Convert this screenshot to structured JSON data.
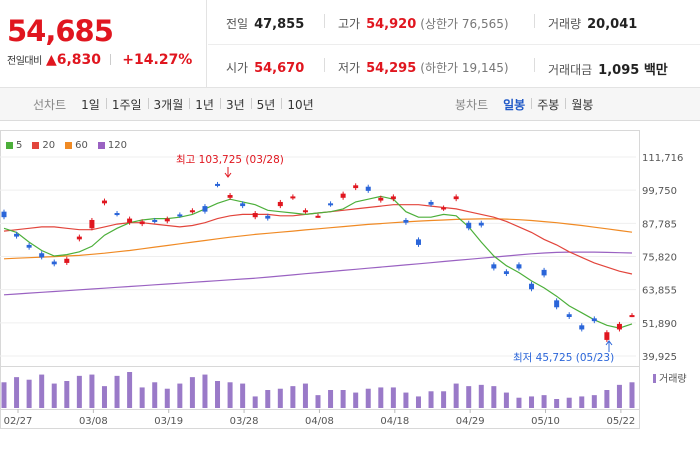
{
  "quote": {
    "price": "54,685",
    "change_label": "전일대비",
    "change_value": "▲6,830",
    "change_pct": "+14.27%",
    "metrics": [
      {
        "key": "전일",
        "value": "47,855",
        "color": "default"
      },
      {
        "key": "고가",
        "value": "54,920",
        "color": "red",
        "sub": "(상한가 76,565)"
      },
      {
        "key": "거래량",
        "value": "20,041",
        "color": "default"
      },
      {
        "key": "시가",
        "value": "54,670",
        "color": "red"
      },
      {
        "key": "저가",
        "value": "54,295",
        "color": "red",
        "sub": "(하한가 19,145)"
      },
      {
        "key": "거래대금",
        "value": "1,095 백만",
        "color": "default"
      }
    ]
  },
  "line_chart_tabs": {
    "label": "선차트",
    "items": [
      "1일",
      "1주일",
      "3개월",
      "1년",
      "3년",
      "5년",
      "10년"
    ]
  },
  "candle_chart_tabs": {
    "label": "봉차트",
    "items": [
      "일봉",
      "주봉",
      "월봉"
    ],
    "active": "일봉"
  },
  "chart_data": {
    "type": "candlestick",
    "legend": [
      {
        "label": "5",
        "color": "#4caf3a"
      },
      {
        "label": "20",
        "color": "#e2453c"
      },
      {
        "label": "60",
        "color": "#f08a24"
      },
      {
        "label": "120",
        "color": "#9a62c2"
      }
    ],
    "price_ticks": [
      "111,716",
      "99,750",
      "87,785",
      "75,820",
      "63,855",
      "51,890",
      "39,925"
    ],
    "ylim": [
      39925,
      111716
    ],
    "x_labels": [
      "02/27",
      "03/08",
      "03/19",
      "03/28",
      "04/08",
      "04/18",
      "04/29",
      "05/10",
      "05/22"
    ],
    "annotations": {
      "high": "최고 103,725 (03/28)",
      "low": "최저 45,725 (05/23)"
    },
    "volume_label": "거래량",
    "candles": [
      {
        "o": 92000,
        "c": 90000
      },
      {
        "o": 84000,
        "c": 83000
      },
      {
        "o": 80000,
        "c": 79000
      },
      {
        "o": 77000,
        "c": 75500
      },
      {
        "o": 74000,
        "c": 73000
      },
      {
        "o": 73500,
        "c": 75000
      },
      {
        "o": 82000,
        "c": 83000
      },
      {
        "o": 86000,
        "c": 89000
      },
      {
        "o": 95000,
        "c": 96000
      },
      {
        "o": 91500,
        "c": 91000
      },
      {
        "o": 88000,
        "c": 89500
      },
      {
        "o": 87500,
        "c": 88500
      },
      {
        "o": 89000,
        "c": 88500
      },
      {
        "o": 88500,
        "c": 89500
      },
      {
        "o": 91000,
        "c": 90500
      },
      {
        "o": 92000,
        "c": 92500
      },
      {
        "o": 94000,
        "c": 92000
      },
      {
        "o": 102000,
        "c": 101500
      },
      {
        "o": 97000,
        "c": 98000
      },
      {
        "o": 95000,
        "c": 94000
      },
      {
        "o": 90000,
        "c": 91500
      },
      {
        "o": 90500,
        "c": 89500
      },
      {
        "o": 94000,
        "c": 95500
      },
      {
        "o": 97000,
        "c": 97500
      },
      {
        "o": 92000,
        "c": 92500
      },
      {
        "o": 90500,
        "c": 90500
      },
      {
        "o": 95000,
        "c": 94500
      },
      {
        "o": 97000,
        "c": 98500
      },
      {
        "o": 100500,
        "c": 101500
      },
      {
        "o": 101000,
        "c": 99500
      },
      {
        "o": 96000,
        "c": 97000
      },
      {
        "o": 96500,
        "c": 97500
      },
      {
        "o": 89000,
        "c": 88000
      },
      {
        "o": 82000,
        "c": 80000
      },
      {
        "o": 95500,
        "c": 94500
      },
      {
        "o": 93000,
        "c": 93500
      },
      {
        "o": 96500,
        "c": 97500
      },
      {
        "o": 88000,
        "c": 86000
      },
      {
        "o": 88000,
        "c": 87000
      },
      {
        "o": 73000,
        "c": 71500
      },
      {
        "o": 70500,
        "c": 69500
      },
      {
        "o": 73000,
        "c": 71500
      },
      {
        "o": 66000,
        "c": 64000
      },
      {
        "o": 71000,
        "c": 69000
      },
      {
        "o": 60000,
        "c": 57500
      },
      {
        "o": 55000,
        "c": 54000
      },
      {
        "o": 51000,
        "c": 49500
      },
      {
        "o": 53500,
        "c": 52500
      },
      {
        "o": 45725,
        "c": 48500
      },
      {
        "o": 49500,
        "c": 51500
      },
      {
        "o": 54670,
        "c": 54685
      }
    ],
    "volume": [
      20,
      24,
      22,
      26,
      19,
      21,
      25,
      26,
      17,
      25,
      28,
      16,
      20,
      15,
      19,
      24,
      26,
      21,
      20,
      19,
      9,
      14,
      15,
      17,
      19,
      10,
      14,
      14,
      12,
      15,
      16,
      16,
      12,
      9,
      13,
      13,
      19,
      17,
      18,
      17,
      12,
      8,
      9,
      10,
      7,
      8,
      9,
      10,
      14,
      18,
      20
    ],
    "ma5": [
      86000,
      84500,
      81000,
      78000,
      76000,
      76500,
      77500,
      79500,
      83500,
      86000,
      88000,
      89000,
      89500,
      89500,
      90000,
      91000,
      93000,
      95000,
      96500,
      95500,
      94500,
      92500,
      92000,
      91500,
      91000,
      91500,
      92000,
      93000,
      95500,
      96500,
      97500,
      96500,
      92000,
      90000,
      90000,
      91000,
      90500,
      86500,
      81000,
      76000,
      72500,
      70000,
      67000,
      64500,
      61500,
      58000,
      55500,
      53000,
      51000,
      50000,
      51500
    ],
    "ma20": [
      85000,
      85500,
      86000,
      86500,
      86500,
      86000,
      85500,
      85500,
      86500,
      87500,
      88000,
      88000,
      87500,
      87000,
      86500,
      87000,
      88000,
      89500,
      90500,
      91000,
      91000,
      91000,
      90500,
      90500,
      91000,
      91500,
      92000,
      92500,
      93000,
      93500,
      94000,
      94500,
      94500,
      94500,
      94000,
      93500,
      93000,
      92000,
      91000,
      90000,
      88500,
      86500,
      84500,
      82000,
      80000,
      77500,
      75500,
      73500,
      72000,
      70500,
      69500
    ],
    "ma60": [
      75000,
      75200,
      75400,
      75600,
      75800,
      76000,
      76200,
      76600,
      77000,
      77500,
      78000,
      78600,
      79200,
      79800,
      80400,
      81000,
      81600,
      82200,
      82800,
      83300,
      83800,
      84200,
      84600,
      85000,
      85400,
      85800,
      86200,
      86600,
      87000,
      87400,
      87700,
      88000,
      88300,
      88600,
      88800,
      89000,
      89200,
      89300,
      89400,
      89400,
      89300,
      89100,
      88800,
      88400,
      88000,
      87500,
      87000,
      86400,
      85800,
      85200,
      84600
    ],
    "ma120": [
      62000,
      62300,
      62600,
      62900,
      63200,
      63500,
      63800,
      64100,
      64400,
      64700,
      65000,
      65300,
      65600,
      65900,
      66200,
      66500,
      66800,
      67100,
      67400,
      67700,
      68000,
      68400,
      68800,
      69200,
      69600,
      70000,
      70400,
      70800,
      71200,
      71600,
      72000,
      72400,
      72800,
      73200,
      73600,
      74000,
      74400,
      74800,
      75200,
      75600,
      76000,
      76400,
      76800,
      77100,
      77300,
      77400,
      77400,
      77400,
      77300,
      77200,
      77100
    ]
  }
}
